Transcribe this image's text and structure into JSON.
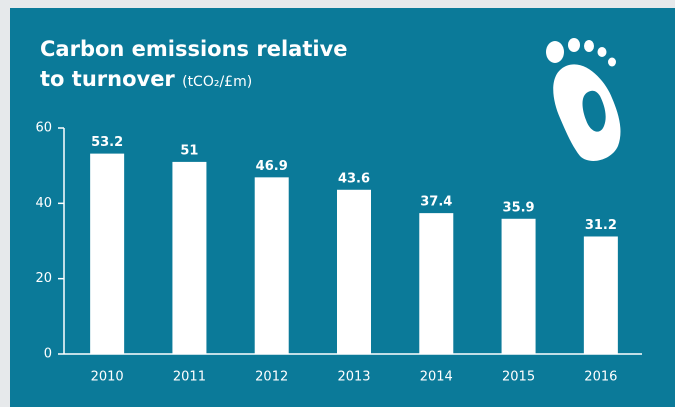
{
  "chart_data": {
    "type": "bar",
    "title": "Carbon emissions relative to turnover",
    "subtitle": "(tCO₂/£m)",
    "categories": [
      "2010",
      "2011",
      "2012",
      "2013",
      "2014",
      "2015",
      "2016"
    ],
    "values": [
      53.2,
      51,
      46.9,
      43.6,
      37.4,
      35.9,
      31.2
    ],
    "color": "#ffffff",
    "ylim": [
      0,
      60
    ],
    "yticks": [
      0,
      20,
      40,
      60
    ],
    "grid": false
  }
}
